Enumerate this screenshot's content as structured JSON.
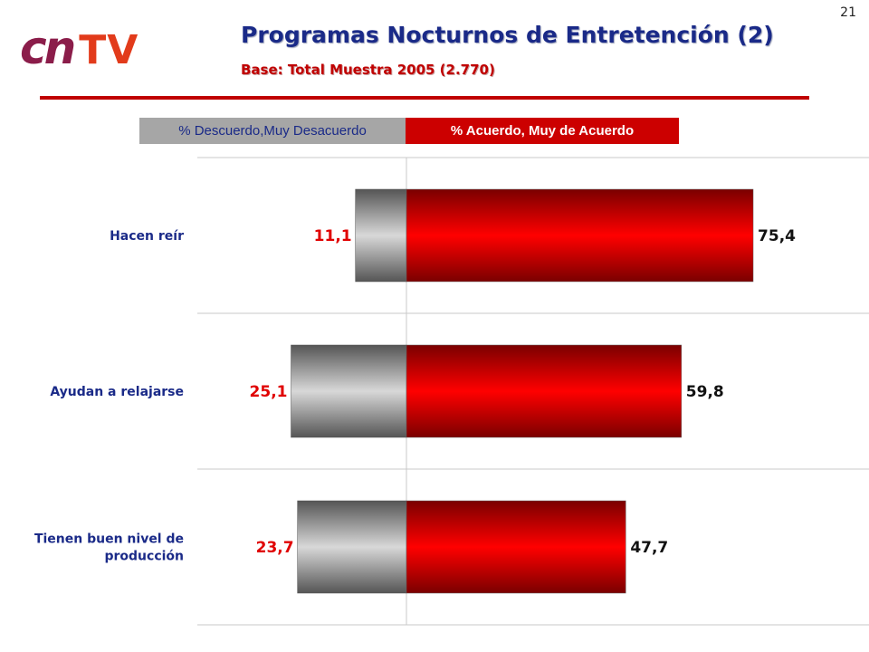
{
  "page": {
    "number": "21"
  },
  "logo": {
    "part1": "cn",
    "part2": "TV"
  },
  "header": {
    "title": "Programas Nocturnos de Entretención (2)",
    "subtitle": "Base: Total Muestra 2005 (2.770)"
  },
  "legend": {
    "left": "% Descuerdo,Muy Desacuerdo",
    "right": "% Acuerdo, Muy de Acuerdo"
  },
  "colors": {
    "title": "#1a2a88",
    "subtitle": "#c00000",
    "disagree_bar": "#a6a6a6",
    "agree_bar": "#e00000"
  },
  "chart_data": {
    "type": "bar",
    "orientation": "horizontal-diverging",
    "categories": [
      [
        "Hacen reír"
      ],
      [
        "Ayudan a relajarse"
      ],
      [
        "Tienen buen nivel de",
        "producción"
      ]
    ],
    "series": [
      {
        "name": "% Descuerdo,Muy Desacuerdo",
        "values": [
          11.1,
          25.1,
          23.7
        ],
        "labels": [
          "11,1",
          "25,1",
          "23,7"
        ]
      },
      {
        "name": "% Acuerdo, Muy de Acuerdo",
        "values": [
          75.4,
          59.8,
          47.7
        ],
        "labels": [
          "75,4",
          "59,8",
          "47,7"
        ]
      }
    ],
    "xlim": [
      -30,
      100
    ],
    "grid": "horizontal separators",
    "legend": "top"
  }
}
